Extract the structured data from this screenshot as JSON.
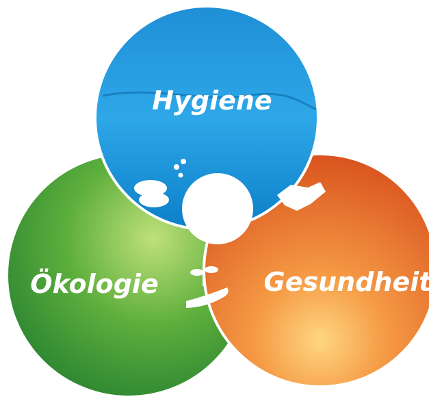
{
  "circles": [
    {
      "label": "Ökologie"
    },
    {
      "label": "Gesundheit"
    },
    {
      "label": "Hygiene"
    }
  ]
}
